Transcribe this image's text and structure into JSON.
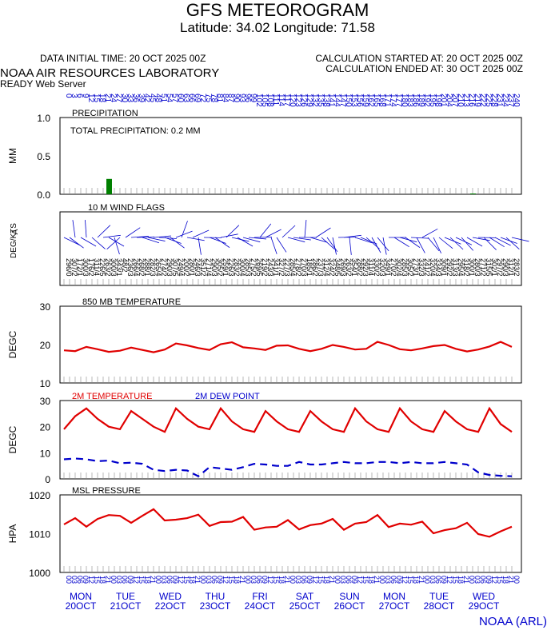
{
  "header": {
    "title": "GFS METEOROGRAM",
    "latlon": "Latitude: 34.02 Longitude:  71.58",
    "init_time": "DATA INITIAL TIME: 20 OCT 2025 00Z",
    "calc_started": "CALCULATION STARTED AT: 20 OCT 2025 00Z",
    "calc_ended": "CALCULATION ENDED AT: 30 OCT 2025 00Z",
    "lab": "NOAA AIR RESOURCES LABORATORY",
    "server": "READY Web Server",
    "footer": "NOAA (ARL)"
  },
  "hours_axis": [
    "0",
    "3",
    "6",
    "9",
    "12",
    "15",
    "18",
    "21",
    "24",
    "27",
    "30",
    "33",
    "36",
    "39",
    "42",
    "45",
    "48",
    "51",
    "54",
    "57",
    "60",
    "63",
    "66",
    "69",
    "72",
    "75",
    "78",
    "81",
    "84",
    "87",
    "90",
    "93",
    "96",
    "99",
    "102",
    "105",
    "108",
    "111",
    "114",
    "117",
    "120",
    "123",
    "126",
    "129",
    "132",
    "135",
    "138",
    "141",
    "144",
    "147",
    "150",
    "153",
    "156",
    "159",
    "162",
    "165",
    "168",
    "171",
    "174",
    "177",
    "180",
    "183",
    "186",
    "189",
    "192",
    "195",
    "198",
    "201",
    "204",
    "207",
    "210",
    "213",
    "216",
    "219",
    "222",
    "225",
    "228",
    "231",
    "234",
    "237",
    "240"
  ],
  "time_axis": {
    "hour_labels": [
      "00",
      "12"
    ],
    "days": [
      {
        "dow": "MON",
        "date": "20OCT"
      },
      {
        "dow": "TUE",
        "date": "21OCT"
      },
      {
        "dow": "WED",
        "date": "22OCT"
      },
      {
        "dow": "THU",
        "date": "23OCT"
      },
      {
        "dow": "FRI",
        "date": "24OCT"
      },
      {
        "dow": "SAT",
        "date": "25OCT"
      },
      {
        "dow": "SUN",
        "date": "26OCT"
      },
      {
        "dow": "MON",
        "date": "27OCT"
      },
      {
        "dow": "TUE",
        "date": "28OCT"
      },
      {
        "dow": "WED",
        "date": "29OCT"
      }
    ]
  },
  "chart_data": [
    {
      "type": "bar",
      "title": "PRECIPITATION",
      "annotation": "TOTAL PRECIPITATION:   0.2 MM",
      "ylabel": "MM",
      "ylim": [
        0,
        1.0
      ],
      "yticks": [
        "0.0",
        "0.5",
        "1.0"
      ],
      "x_hours": [
        24,
        219
      ],
      "values": [
        0.2,
        0.01
      ],
      "color": "#008000"
    },
    {
      "type": "wind_barbs",
      "title": "10 M  WIND FLAGS",
      "ylabel": "DEG/KTS",
      "ylabel_extra": "A",
      "direction_deg": [
        296,
        307,
        172,
        300,
        176,
        311,
        226,
        263,
        300,
        343,
        48,
        236,
        266,
        268,
        288,
        282,
        265,
        274,
        290,
        307,
        249,
        200,
        280,
        246,
        351,
        271,
        290,
        305,
        259,
        226,
        283,
        300,
        285,
        275,
        269,
        219,
        243,
        341,
        327,
        227,
        285,
        278,
        270,
        185,
        286,
        237,
        312,
        324,
        348,
        269,
        263,
        354,
        288,
        292,
        311,
        330,
        320,
        349,
        270,
        302,
        285,
        305,
        273,
        332,
        241,
        320,
        334,
        309,
        292,
        313,
        295,
        318,
        300,
        280,
        271,
        315,
        302,
        297,
        290,
        312,
        283
      ],
      "speed_kt": [
        0,
        2,
        1,
        3,
        2,
        4,
        5,
        2,
        3,
        1,
        2,
        3,
        4,
        2,
        1,
        3,
        4,
        2,
        3,
        5,
        4,
        2,
        1,
        3,
        2,
        4,
        3,
        2,
        1,
        3,
        2,
        4,
        3,
        2,
        5,
        2,
        3,
        1,
        2,
        3,
        4,
        2,
        3,
        1,
        2,
        3,
        4,
        2,
        5,
        3,
        2,
        1,
        2,
        3,
        4,
        2,
        3,
        1,
        2,
        4,
        3,
        2,
        1,
        3,
        2,
        4,
        3,
        1,
        2,
        3,
        4,
        2,
        1,
        3,
        2,
        5,
        1,
        2,
        3,
        1,
        2
      ],
      "color": "#0000cc"
    },
    {
      "type": "line",
      "title": "850 MB  TEMPERATURE",
      "ylabel": "DEGC",
      "ylim": [
        10,
        30
      ],
      "yticks": [
        "10",
        "20",
        "30"
      ],
      "x": [
        0,
        6,
        12,
        18,
        24,
        30,
        36,
        42,
        48,
        54,
        60,
        66,
        72,
        78,
        84,
        90,
        96,
        102,
        108,
        114,
        120,
        126,
        132,
        138,
        144,
        150,
        156,
        162,
        168,
        174,
        180,
        186,
        192,
        198,
        204,
        210,
        216,
        222,
        228,
        234,
        240
      ],
      "series": [
        {
          "values": [
            18.5,
            18.3,
            19.4,
            18.8,
            18.1,
            18.4,
            19.2,
            18.6,
            18.0,
            18.7,
            20.3,
            19.8,
            19.1,
            18.6,
            20.1,
            20.6,
            19.3,
            19.0,
            18.6,
            19.7,
            19.8,
            18.9,
            18.3,
            18.9,
            19.9,
            19.4,
            18.7,
            18.9,
            20.7,
            19.9,
            18.8,
            18.5,
            19.0,
            19.6,
            19.9,
            18.9,
            18.2,
            18.7,
            19.5,
            20.7,
            19.4
          ],
          "color": "#e00000"
        }
      ]
    },
    {
      "type": "line",
      "title": "",
      "ylabel": "DEGC",
      "ylim": [
        0,
        30
      ],
      "yticks": [
        "0",
        "10",
        "20",
        "30"
      ],
      "x": [
        0,
        6,
        12,
        18,
        24,
        30,
        36,
        42,
        48,
        54,
        60,
        66,
        72,
        78,
        84,
        90,
        96,
        102,
        108,
        114,
        120,
        126,
        132,
        138,
        144,
        150,
        156,
        162,
        168,
        174,
        180,
        186,
        192,
        198,
        204,
        210,
        216,
        222,
        228,
        234,
        240
      ],
      "series": [
        {
          "name": "2M TEMPERATURE",
          "values": [
            19,
            24,
            27,
            23,
            20,
            19,
            26,
            23,
            20,
            18,
            27,
            23,
            20,
            19,
            27,
            22,
            19,
            18,
            26,
            22,
            19,
            18,
            26,
            22,
            19,
            18,
            27,
            22,
            19,
            18,
            27,
            22,
            19,
            18,
            26,
            22,
            19,
            18,
            27,
            21,
            18
          ],
          "color": "#e00000",
          "dash": false
        },
        {
          "name": "2M  DEW POINT",
          "values": [
            7.5,
            7.8,
            7.5,
            6.8,
            7.0,
            6.0,
            6.2,
            5.8,
            3.5,
            3.0,
            3.5,
            3.2,
            1.0,
            4.5,
            4.0,
            3.5,
            4.5,
            5.8,
            5.5,
            5.0,
            5.0,
            6.5,
            5.5,
            5.5,
            6.0,
            6.5,
            6.0,
            6.0,
            6.5,
            6.5,
            6.0,
            6.5,
            6.0,
            6.0,
            6.5,
            6.0,
            5.5,
            2.5,
            1.5,
            1.2,
            1.0
          ],
          "color": "#0000cc",
          "dash": true
        }
      ]
    },
    {
      "type": "line",
      "title": "MSL PRESSURE",
      "ylabel": "HPA",
      "ylim": [
        1000,
        1020
      ],
      "yticks": [
        "1000",
        "1010",
        "1020"
      ],
      "x": [
        0,
        6,
        12,
        18,
        24,
        30,
        36,
        42,
        48,
        54,
        60,
        66,
        72,
        78,
        84,
        90,
        96,
        102,
        108,
        114,
        120,
        126,
        132,
        138,
        144,
        150,
        156,
        162,
        168,
        174,
        180,
        186,
        192,
        198,
        204,
        210,
        216,
        222,
        228,
        234,
        240
      ],
      "series": [
        {
          "values": [
            1012.4,
            1014.0,
            1011.8,
            1013.8,
            1014.8,
            1014.6,
            1012.8,
            1014.6,
            1016.3,
            1013.4,
            1013.6,
            1014.0,
            1014.9,
            1012.0,
            1013.0,
            1013.1,
            1014.3,
            1011.0,
            1011.6,
            1011.8,
            1013.5,
            1011.1,
            1012.2,
            1012.6,
            1013.8,
            1011.0,
            1012.6,
            1013.0,
            1014.8,
            1011.7,
            1012.6,
            1012.3,
            1013.1,
            1010.1,
            1010.9,
            1011.4,
            1012.8,
            1009.9,
            1009.2,
            1010.6,
            1011.8
          ],
          "color": "#e00000"
        }
      ]
    }
  ]
}
